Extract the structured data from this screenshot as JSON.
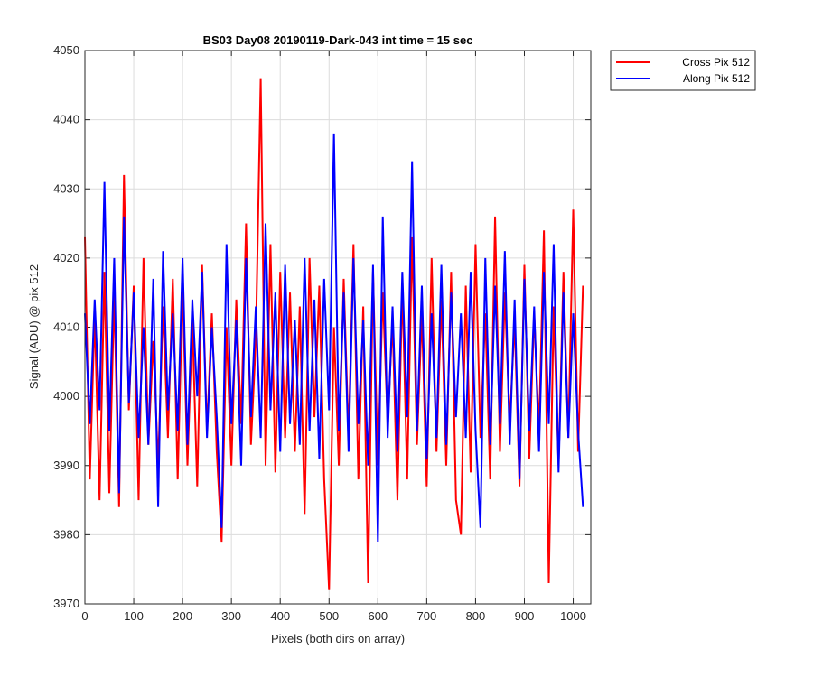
{
  "chart_data": {
    "type": "line",
    "title": "BS03 Day08 20190119-Dark-043 int time = 15 sec",
    "xlabel": "Pixels (both dirs on array)",
    "ylabel": "Signal (ADU) @ pix 512",
    "x": [
      0,
      10,
      20,
      30,
      40,
      50,
      60,
      70,
      80,
      90,
      100,
      110,
      120,
      130,
      140,
      150,
      160,
      170,
      180,
      190,
      200,
      210,
      220,
      230,
      240,
      250,
      260,
      270,
      280,
      290,
      300,
      310,
      320,
      330,
      340,
      350,
      360,
      370,
      380,
      390,
      400,
      410,
      420,
      430,
      440,
      450,
      460,
      470,
      480,
      490,
      500,
      510,
      520,
      530,
      540,
      550,
      560,
      570,
      580,
      590,
      600,
      610,
      620,
      630,
      640,
      650,
      660,
      670,
      680,
      690,
      700,
      710,
      720,
      730,
      740,
      750,
      760,
      770,
      780,
      790,
      800,
      810,
      820,
      830,
      840,
      850,
      860,
      870,
      880,
      890,
      900,
      910,
      920,
      930,
      940,
      950,
      960,
      970,
      980,
      990,
      1000,
      1010,
      1020
    ],
    "series": [
      {
        "name": "Cross Pix 512",
        "color": "#ff0000",
        "values": [
          4023,
          3988,
          4012,
          3985,
          4018,
          3986,
          4015,
          3984,
          4032,
          3998,
          4016,
          3985,
          4020,
          3993,
          4008,
          3990,
          4013,
          3994,
          4017,
          3988,
          4016,
          3990,
          4011,
          3987,
          4019,
          3995,
          4012,
          3992,
          3979,
          4010,
          3990,
          4014,
          3996,
          4025,
          3993,
          4008,
          4046,
          3990,
          4022,
          3989,
          4018,
          3994,
          4015,
          3992,
          4013,
          3983,
          4020,
          3997,
          4016,
          3988,
          3972,
          4010,
          3990,
          4017,
          3994,
          4022,
          3988,
          4013,
          3973,
          4018,
          3990,
          4015,
          3996,
          4011,
          3985,
          4016,
          3988,
          4023,
          3993,
          4012,
          3987,
          4020,
          3992,
          4014,
          3990,
          4018,
          3985,
          3980,
          4016,
          3989,
          4022,
          3994,
          4012,
          3988,
          4026,
          3992,
          4015,
          3996,
          4011,
          3987,
          4019,
          3991,
          4012,
          3995,
          4024,
          3973,
          4013,
          3990,
          4018,
          3994,
          4027,
          3992,
          4016
        ]
      },
      {
        "name": "Along Pix 512",
        "color": "#0000ff",
        "values": [
          4012,
          3996,
          4014,
          3998,
          4031,
          3995,
          4020,
          3986,
          4026,
          3999,
          4015,
          3994,
          4010,
          3993,
          4017,
          3984,
          4021,
          3998,
          4012,
          3995,
          4020,
          3993,
          4014,
          4000,
          4018,
          3994,
          4010,
          3997,
          3981,
          4022,
          3996,
          4011,
          3990,
          4020,
          3997,
          4013,
          3994,
          4025,
          3998,
          4015,
          3992,
          4019,
          3996,
          4011,
          3993,
          4020,
          3995,
          4014,
          3991,
          4017,
          3998,
          4038,
          3995,
          4015,
          3992,
          4020,
          3996,
          4011,
          3990,
          4019,
          3979,
          4026,
          3994,
          4013,
          3992,
          4018,
          3997,
          4034,
          3995,
          4016,
          3991,
          4012,
          3994,
          4019,
          3993,
          4015,
          3997,
          4012,
          3994,
          4018,
          3995,
          3981,
          4020,
          3993,
          4016,
          3996,
          4021,
          3993,
          4014,
          3988,
          4017,
          3995,
          4013,
          3992,
          4018,
          3996,
          4022,
          3989,
          4015,
          3994,
          4012,
          3995,
          3984
        ]
      }
    ],
    "xlim": [
      0,
      1036
    ],
    "ylim": [
      3970,
      4050
    ],
    "xticks": [
      0,
      100,
      200,
      300,
      400,
      500,
      600,
      700,
      800,
      900,
      1000
    ],
    "yticks": [
      3970,
      3980,
      3990,
      4000,
      4010,
      4020,
      4030,
      4040,
      4050
    ],
    "grid": true,
    "legend": "outside-top-right"
  }
}
